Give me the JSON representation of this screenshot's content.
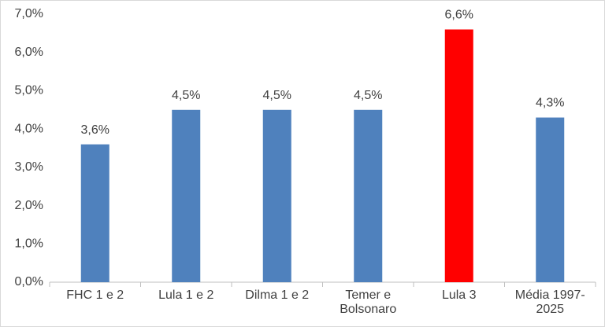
{
  "chart_data": {
    "type": "bar",
    "categories": [
      "FHC 1 e 2",
      "Lula 1 e 2",
      "Dilma 1 e 2",
      "Temer e Bolsonaro",
      "Lula 3",
      "Média 1997-2025"
    ],
    "values": [
      3.6,
      4.5,
      4.5,
      4.5,
      6.6,
      4.3
    ],
    "value_labels": [
      "3,6%",
      "4,5%",
      "4,5%",
      "4,5%",
      "6,6%",
      "4,3%"
    ],
    "colors": [
      "#4f81bd",
      "#4f81bd",
      "#4f81bd",
      "#4f81bd",
      "#ff0000",
      "#4f81bd"
    ],
    "ylim": [
      0,
      7
    ],
    "yticks": [
      {
        "value": 0,
        "label": "0,0%"
      },
      {
        "value": 1,
        "label": "1,0%"
      },
      {
        "value": 2,
        "label": "2,0%"
      },
      {
        "value": 3,
        "label": "3,0%"
      },
      {
        "value": 4,
        "label": "4,0%"
      },
      {
        "value": 5,
        "label": "5,0%"
      },
      {
        "value": 6,
        "label": "6,0%"
      },
      {
        "value": 7,
        "label": "7,0%"
      }
    ],
    "grid": false
  }
}
